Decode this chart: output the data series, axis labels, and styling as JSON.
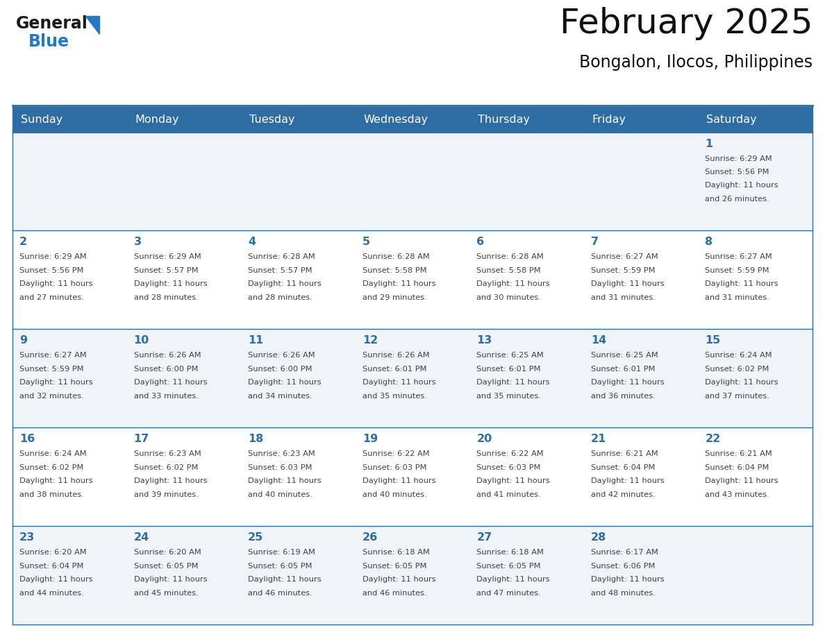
{
  "title": "February 2025",
  "subtitle": "Bongalon, Ilocos, Philippines",
  "days_of_week": [
    "Sunday",
    "Monday",
    "Tuesday",
    "Wednesday",
    "Thursday",
    "Friday",
    "Saturday"
  ],
  "header_bg": "#2E6DA4",
  "header_text": "#FFFFFF",
  "cell_bg_light": "#F0F4F8",
  "cell_bg_white": "#FFFFFF",
  "day_number_color": "#2E6DA4",
  "info_text_color": "#404040",
  "border_color": "#2E6DA4",
  "calendar_data": [
    [
      null,
      null,
      null,
      null,
      null,
      null,
      {
        "day": 1,
        "sunrise": "6:29 AM",
        "sunset": "5:56 PM",
        "daylight_hours": 11,
        "daylight_minutes": 26
      }
    ],
    [
      {
        "day": 2,
        "sunrise": "6:29 AM",
        "sunset": "5:56 PM",
        "daylight_hours": 11,
        "daylight_minutes": 27
      },
      {
        "day": 3,
        "sunrise": "6:29 AM",
        "sunset": "5:57 PM",
        "daylight_hours": 11,
        "daylight_minutes": 28
      },
      {
        "day": 4,
        "sunrise": "6:28 AM",
        "sunset": "5:57 PM",
        "daylight_hours": 11,
        "daylight_minutes": 28
      },
      {
        "day": 5,
        "sunrise": "6:28 AM",
        "sunset": "5:58 PM",
        "daylight_hours": 11,
        "daylight_minutes": 29
      },
      {
        "day": 6,
        "sunrise": "6:28 AM",
        "sunset": "5:58 PM",
        "daylight_hours": 11,
        "daylight_minutes": 30
      },
      {
        "day": 7,
        "sunrise": "6:27 AM",
        "sunset": "5:59 PM",
        "daylight_hours": 11,
        "daylight_minutes": 31
      },
      {
        "day": 8,
        "sunrise": "6:27 AM",
        "sunset": "5:59 PM",
        "daylight_hours": 11,
        "daylight_minutes": 31
      }
    ],
    [
      {
        "day": 9,
        "sunrise": "6:27 AM",
        "sunset": "5:59 PM",
        "daylight_hours": 11,
        "daylight_minutes": 32
      },
      {
        "day": 10,
        "sunrise": "6:26 AM",
        "sunset": "6:00 PM",
        "daylight_hours": 11,
        "daylight_minutes": 33
      },
      {
        "day": 11,
        "sunrise": "6:26 AM",
        "sunset": "6:00 PM",
        "daylight_hours": 11,
        "daylight_minutes": 34
      },
      {
        "day": 12,
        "sunrise": "6:26 AM",
        "sunset": "6:01 PM",
        "daylight_hours": 11,
        "daylight_minutes": 35
      },
      {
        "day": 13,
        "sunrise": "6:25 AM",
        "sunset": "6:01 PM",
        "daylight_hours": 11,
        "daylight_minutes": 35
      },
      {
        "day": 14,
        "sunrise": "6:25 AM",
        "sunset": "6:01 PM",
        "daylight_hours": 11,
        "daylight_minutes": 36
      },
      {
        "day": 15,
        "sunrise": "6:24 AM",
        "sunset": "6:02 PM",
        "daylight_hours": 11,
        "daylight_minutes": 37
      }
    ],
    [
      {
        "day": 16,
        "sunrise": "6:24 AM",
        "sunset": "6:02 PM",
        "daylight_hours": 11,
        "daylight_minutes": 38
      },
      {
        "day": 17,
        "sunrise": "6:23 AM",
        "sunset": "6:02 PM",
        "daylight_hours": 11,
        "daylight_minutes": 39
      },
      {
        "day": 18,
        "sunrise": "6:23 AM",
        "sunset": "6:03 PM",
        "daylight_hours": 11,
        "daylight_minutes": 40
      },
      {
        "day": 19,
        "sunrise": "6:22 AM",
        "sunset": "6:03 PM",
        "daylight_hours": 11,
        "daylight_minutes": 40
      },
      {
        "day": 20,
        "sunrise": "6:22 AM",
        "sunset": "6:03 PM",
        "daylight_hours": 11,
        "daylight_minutes": 41
      },
      {
        "day": 21,
        "sunrise": "6:21 AM",
        "sunset": "6:04 PM",
        "daylight_hours": 11,
        "daylight_minutes": 42
      },
      {
        "day": 22,
        "sunrise": "6:21 AM",
        "sunset": "6:04 PM",
        "daylight_hours": 11,
        "daylight_minutes": 43
      }
    ],
    [
      {
        "day": 23,
        "sunrise": "6:20 AM",
        "sunset": "6:04 PM",
        "daylight_hours": 11,
        "daylight_minutes": 44
      },
      {
        "day": 24,
        "sunrise": "6:20 AM",
        "sunset": "6:05 PM",
        "daylight_hours": 11,
        "daylight_minutes": 45
      },
      {
        "day": 25,
        "sunrise": "6:19 AM",
        "sunset": "6:05 PM",
        "daylight_hours": 11,
        "daylight_minutes": 46
      },
      {
        "day": 26,
        "sunrise": "6:18 AM",
        "sunset": "6:05 PM",
        "daylight_hours": 11,
        "daylight_minutes": 46
      },
      {
        "day": 27,
        "sunrise": "6:18 AM",
        "sunset": "6:05 PM",
        "daylight_hours": 11,
        "daylight_minutes": 47
      },
      {
        "day": 28,
        "sunrise": "6:17 AM",
        "sunset": "6:06 PM",
        "daylight_hours": 11,
        "daylight_minutes": 48
      },
      null
    ]
  ],
  "logo_general_color": "#1a1a1a",
  "logo_blue_color": "#2479C3",
  "logo_triangle_color": "#2479C3"
}
